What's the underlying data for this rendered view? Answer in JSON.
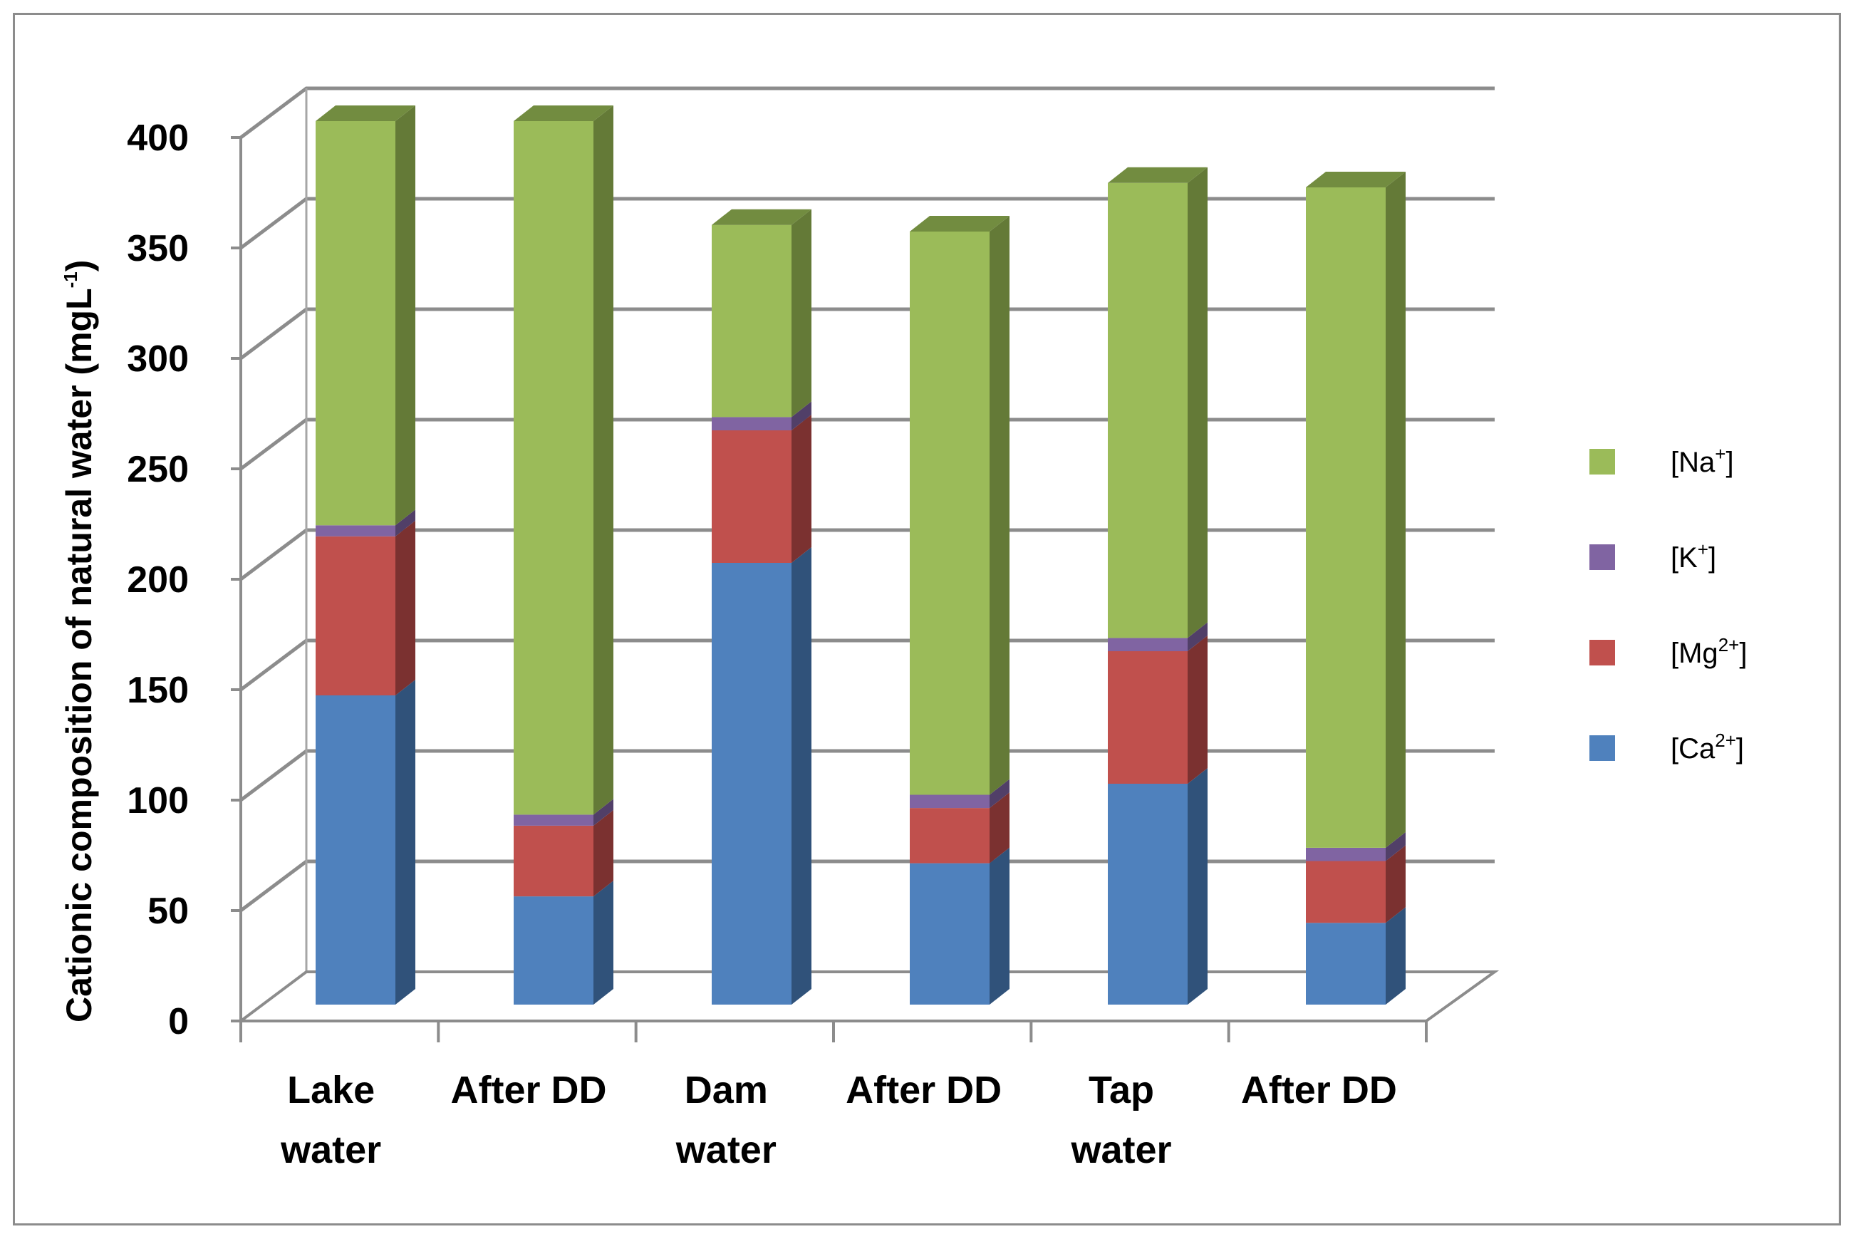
{
  "chart_data": {
    "type": "bar",
    "stacked": true,
    "three_d": true,
    "categories": [
      [
        "Lake",
        "water"
      ],
      [
        "After DD"
      ],
      [
        "Dam",
        "water"
      ],
      [
        "After DD"
      ],
      [
        "Tap",
        "water"
      ],
      [
        "After DD"
      ]
    ],
    "series": [
      {
        "name": "[Ca2+]",
        "label_base": "[Ca",
        "label_sup": "2+",
        "label_end": "]",
        "values": [
          140,
          49,
          200,
          64,
          100,
          37
        ],
        "color": "#4f81bd",
        "side": "#30527a",
        "top": "#3e6a9e"
      },
      {
        "name": "[Mg2+]",
        "label_base": "[Mg",
        "label_sup": "2+",
        "label_end": "]",
        "values": [
          72,
          32,
          60,
          25,
          60,
          28
        ],
        "color": "#c0504d",
        "side": "#7b3130",
        "top": "#9e3f3d"
      },
      {
        "name": "[K+]",
        "label_base": "[K",
        "label_sup": "+",
        "label_end": "]",
        "values": [
          5,
          5,
          6,
          6,
          6,
          6
        ],
        "color": "#8064a2",
        "side": "#513f68",
        "top": "#6a5388"
      },
      {
        "name": "[Na+]",
        "label_base": "[Na",
        "label_sup": "+",
        "label_end": "]",
        "values": [
          183,
          314,
          87,
          255,
          206,
          299
        ],
        "color": "#9bbb59",
        "side": "#647a37",
        "top": "#728c40"
      }
    ],
    "ylabel": "Cationic composition of natural water (mgL",
    "ylabel_sup": "-1",
    "ylabel_end": ")",
    "ylim": [
      0,
      400
    ],
    "yticks": [
      "0",
      "50",
      "100",
      "150",
      "200",
      "250",
      "300",
      "350",
      "400"
    ],
    "legend_position": "right",
    "legend_order": [
      "[Na+]",
      "[K+]",
      "[Mg2+]",
      "[Ca2+]"
    ],
    "grid": true
  }
}
